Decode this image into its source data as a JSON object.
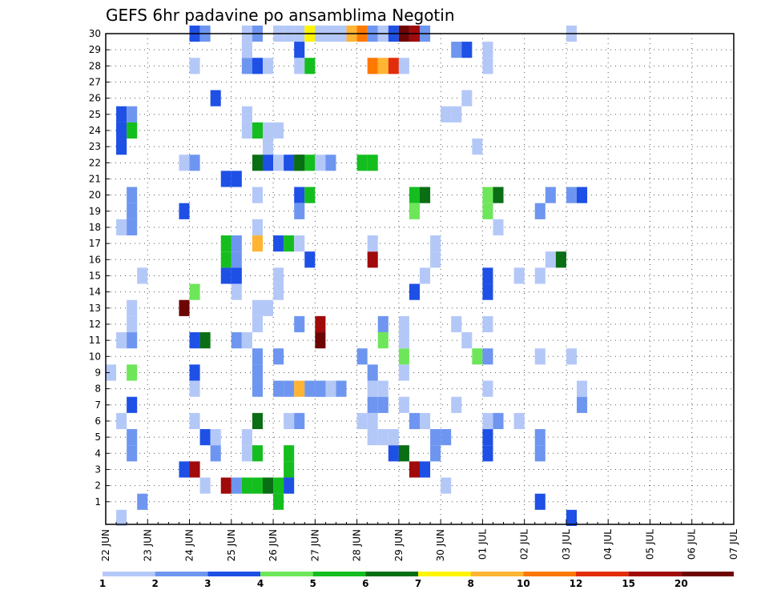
{
  "chart_data": {
    "type": "heatmap",
    "title": "GEFS 6hr padavine po ansamblima Negotin",
    "xlabel": "",
    "ylabel": "",
    "x_ticks": [
      "22 JUN",
      "23 JUN",
      "24 JUN",
      "25 JUN",
      "26 JUN",
      "27 JUN",
      "28 JUN",
      "29 JUN",
      "30 JUN",
      "01 JUL",
      "02 JUL",
      "03 JUL",
      "04 JUL",
      "05 JUL",
      "06 JUL",
      "07 JUL"
    ],
    "y_ticks": [
      "1",
      "2",
      "3",
      "4",
      "5",
      "6",
      "7",
      "8",
      "9",
      "10",
      "11",
      "12",
      "13",
      "14",
      "15",
      "16",
      "17",
      "18",
      "19",
      "20",
      "21",
      "22",
      "23",
      "24",
      "25",
      "26",
      "27",
      "28",
      "29",
      "30"
    ],
    "time_step": "6hr",
    "steps_per_day": 4,
    "ylim": [
      0,
      30
    ],
    "grid": true,
    "legend": {
      "position": "bottom",
      "colors": [
        "#b4c8f8",
        "#6e96f0",
        "#1e50e6",
        "#6ee65a",
        "#14be1e",
        "#0a6e14",
        "#fff500",
        "#ffb432",
        "#ff7800",
        "#e12d0a",
        "#a00a0a",
        "#6e0505"
      ],
      "labels": [
        "1",
        "2",
        "3",
        "4",
        "5",
        "6",
        "7",
        "8",
        "10",
        "12",
        "15",
        "20"
      ]
    },
    "values": [
      [
        23,
        1,
        2
      ],
      [
        24,
        1,
        2
      ],
      [
        1,
        3,
        2
      ],
      [
        25,
        1,
        3
      ],
      [
        24,
        1,
        3
      ],
      [
        25,
        2,
        2
      ],
      [
        24,
        2,
        5
      ],
      [
        23,
        1,
        3
      ],
      [
        11,
        1,
        1
      ],
      [
        11,
        2,
        2
      ],
      [
        18,
        1,
        1
      ],
      [
        18,
        2,
        2
      ],
      [
        19,
        2,
        2
      ],
      [
        20,
        2,
        2
      ],
      [
        9,
        2,
        4
      ],
      [
        7,
        2,
        3
      ],
      [
        4,
        2,
        2
      ],
      [
        5,
        2,
        2
      ],
      [
        6,
        1,
        1
      ],
      [
        0,
        1,
        1
      ],
      [
        9,
        0,
        1
      ],
      [
        15,
        3,
        1
      ],
      [
        13,
        2,
        1
      ],
      [
        12,
        2,
        1
      ],
      [
        30,
        8,
        3
      ],
      [
        30,
        9,
        2
      ],
      [
        28,
        8,
        1
      ],
      [
        3,
        7,
        3
      ],
      [
        3,
        8,
        11
      ],
      [
        19,
        7,
        3
      ],
      [
        14,
        8,
        4
      ],
      [
        13,
        7,
        12
      ],
      [
        9,
        8,
        3
      ],
      [
        8,
        8,
        1
      ],
      [
        6,
        8,
        1
      ],
      [
        11,
        8,
        3
      ],
      [
        11,
        9,
        6
      ],
      [
        22,
        7,
        1
      ],
      [
        22,
        8,
        2
      ],
      [
        5,
        9,
        3
      ],
      [
        5,
        10,
        1
      ],
      [
        4,
        10,
        2
      ],
      [
        26,
        10,
        3
      ],
      [
        2,
        9,
        1
      ],
      [
        21,
        11,
        3
      ],
      [
        21,
        12,
        3
      ],
      [
        16,
        11,
        5
      ],
      [
        16,
        12,
        2
      ],
      [
        15,
        11,
        3
      ],
      [
        15,
        12,
        3
      ],
      [
        14,
        12,
        1
      ],
      [
        17,
        11,
        5
      ],
      [
        17,
        12,
        2
      ],
      [
        11,
        12,
        2
      ],
      [
        11,
        13,
        1
      ],
      [
        25,
        13,
        1
      ],
      [
        2,
        11,
        11
      ],
      [
        2,
        12,
        2
      ],
      [
        2,
        13,
        5
      ],
      [
        2,
        14,
        5
      ],
      [
        2,
        15,
        6
      ],
      [
        2,
        16,
        5
      ],
      [
        2,
        17,
        3
      ],
      [
        28,
        13,
        2
      ],
      [
        28,
        14,
        3
      ],
      [
        28,
        15,
        1
      ],
      [
        29,
        13,
        1
      ],
      [
        30,
        13,
        1
      ],
      [
        30,
        14,
        2
      ],
      [
        24,
        13,
        1
      ],
      [
        24,
        14,
        5
      ],
      [
        24,
        15,
        1
      ],
      [
        24,
        16,
        1
      ],
      [
        23,
        15,
        1
      ],
      [
        22,
        14,
        6
      ],
      [
        22,
        15,
        3
      ],
      [
        22,
        16,
        1
      ],
      [
        22,
        17,
        3
      ],
      [
        22,
        18,
        6
      ],
      [
        22,
        19,
        5
      ],
      [
        22,
        20,
        1
      ],
      [
        4,
        13,
        1
      ],
      [
        4,
        14,
        5
      ],
      [
        5,
        13,
        1
      ],
      [
        6,
        14,
        6
      ],
      [
        9,
        14,
        2
      ],
      [
        10,
        14,
        2
      ],
      [
        8,
        14,
        2
      ],
      [
        17,
        14,
        8
      ],
      [
        18,
        14,
        1
      ],
      [
        20,
        14,
        1
      ],
      [
        12,
        14,
        1
      ],
      [
        13,
        14,
        1
      ],
      [
        28,
        18,
        1
      ],
      [
        28,
        19,
        5
      ],
      [
        30,
        16,
        1
      ],
      [
        30,
        17,
        1
      ],
      [
        30,
        18,
        1
      ],
      [
        30,
        19,
        7
      ],
      [
        30,
        20,
        1
      ],
      [
        8,
        16,
        2
      ],
      [
        8,
        17,
        2
      ],
      [
        8,
        18,
        8
      ],
      [
        8,
        19,
        2
      ],
      [
        8,
        21,
        1
      ],
      [
        8,
        22,
        2
      ],
      [
        17,
        16,
        3
      ],
      [
        17,
        17,
        5
      ],
      [
        17,
        18,
        1
      ],
      [
        16,
        19,
        3
      ],
      [
        15,
        16,
        1
      ],
      [
        1,
        16,
        5
      ],
      [
        13,
        15,
        1
      ],
      [
        10,
        16,
        2
      ],
      [
        14,
        16,
        1
      ],
      [
        12,
        18,
        2
      ],
      [
        20,
        18,
        3
      ],
      [
        20,
        19,
        5
      ],
      [
        19,
        18,
        2
      ],
      [
        22,
        18,
        6
      ],
      [
        22,
        21,
        2
      ],
      [
        29,
        18,
        3
      ],
      [
        8,
        20,
        2
      ],
      [
        8,
        21,
        1
      ],
      [
        6,
        17,
        1
      ],
      [
        6,
        18,
        2
      ],
      [
        4,
        17,
        5
      ],
      [
        3,
        17,
        5
      ],
      [
        12,
        20,
        11
      ],
      [
        11,
        20,
        12
      ],
      [
        8,
        20,
        2
      ],
      [
        22,
        24,
        5
      ],
      [
        30,
        20,
        1
      ],
      [
        30,
        21,
        1
      ],
      [
        30,
        22,
        1
      ],
      [
        30,
        23,
        8
      ],
      [
        30,
        24,
        9
      ],
      [
        30,
        25,
        2
      ],
      [
        30,
        26,
        1
      ],
      [
        10,
        24,
        2
      ],
      [
        6,
        24,
        1
      ],
      [
        6,
        25,
        1
      ],
      [
        5,
        25,
        1
      ],
      [
        5,
        26,
        1
      ],
      [
        8,
        25,
        1
      ],
      [
        8,
        26,
        1
      ],
      [
        7,
        26,
        2
      ],
      [
        7,
        25,
        2
      ],
      [
        22,
        25,
        5
      ],
      [
        12,
        26,
        2
      ],
      [
        11,
        26,
        4
      ],
      [
        9,
        25,
        2
      ],
      [
        16,
        25,
        11
      ],
      [
        17,
        25,
        1
      ],
      [
        28,
        25,
        9
      ],
      [
        28,
        26,
        8
      ],
      [
        28,
        27,
        10
      ],
      [
        28,
        28,
        1
      ],
      [
        30,
        27,
        3
      ],
      [
        30,
        28,
        12
      ],
      [
        30,
        29,
        11
      ],
      [
        30,
        30,
        2
      ],
      [
        4,
        27,
        3
      ],
      [
        4,
        28,
        6
      ],
      [
        5,
        27,
        1
      ],
      [
        10,
        28,
        4
      ],
      [
        9,
        28,
        1
      ],
      [
        11,
        28,
        1
      ],
      [
        7,
        28,
        1
      ],
      [
        20,
        29,
        5
      ],
      [
        20,
        30,
        6
      ],
      [
        19,
        29,
        4
      ],
      [
        14,
        29,
        3
      ],
      [
        12,
        28,
        1
      ],
      [
        3,
        30,
        3
      ],
      [
        3,
        29,
        11
      ],
      [
        6,
        30,
        1
      ],
      [
        6,
        29,
        2
      ],
      [
        15,
        30,
        1
      ],
      [
        16,
        31,
        1
      ],
      [
        4,
        31,
        2
      ],
      [
        5,
        31,
        2
      ],
      [
        17,
        31,
        1
      ],
      [
        5,
        32,
        2
      ],
      [
        2,
        32,
        1
      ],
      [
        12,
        33,
        1
      ],
      [
        7,
        33,
        1
      ],
      [
        25,
        32,
        1
      ],
      [
        25,
        33,
        1
      ],
      [
        29,
        33,
        2
      ],
      [
        29,
        34,
        3
      ],
      [
        26,
        34,
        1
      ],
      [
        11,
        34,
        1
      ],
      [
        10,
        35,
        4
      ],
      [
        10,
        36,
        2
      ],
      [
        19,
        36,
        4
      ],
      [
        20,
        36,
        4
      ],
      [
        20,
        37,
        6
      ],
      [
        4,
        36,
        3
      ],
      [
        5,
        36,
        3
      ],
      [
        6,
        36,
        1
      ],
      [
        6,
        37,
        2
      ],
      [
        29,
        36,
        1
      ],
      [
        28,
        36,
        1
      ],
      [
        14,
        36,
        3
      ],
      [
        15,
        36,
        3
      ],
      [
        12,
        36,
        1
      ],
      [
        23,
        35,
        1
      ],
      [
        18,
        37,
        1
      ],
      [
        8,
        36,
        1
      ],
      [
        1,
        41,
        3
      ],
      [
        6,
        39,
        1
      ],
      [
        10,
        41,
        1
      ],
      [
        4,
        41,
        2
      ],
      [
        5,
        41,
        2
      ],
      [
        19,
        41,
        2
      ],
      [
        20,
        42,
        2
      ],
      [
        16,
        42,
        1
      ],
      [
        15,
        41,
        1
      ],
      [
        16,
        43,
        6
      ],
      [
        20,
        45,
        3
      ],
      [
        20,
        44,
        2
      ],
      [
        10,
        44,
        1
      ],
      [
        8,
        45,
        1
      ],
      [
        7,
        45,
        2
      ],
      [
        0,
        44,
        3
      ],
      [
        30,
        44,
        1
      ],
      [
        15,
        39,
        1
      ]
    ]
  }
}
